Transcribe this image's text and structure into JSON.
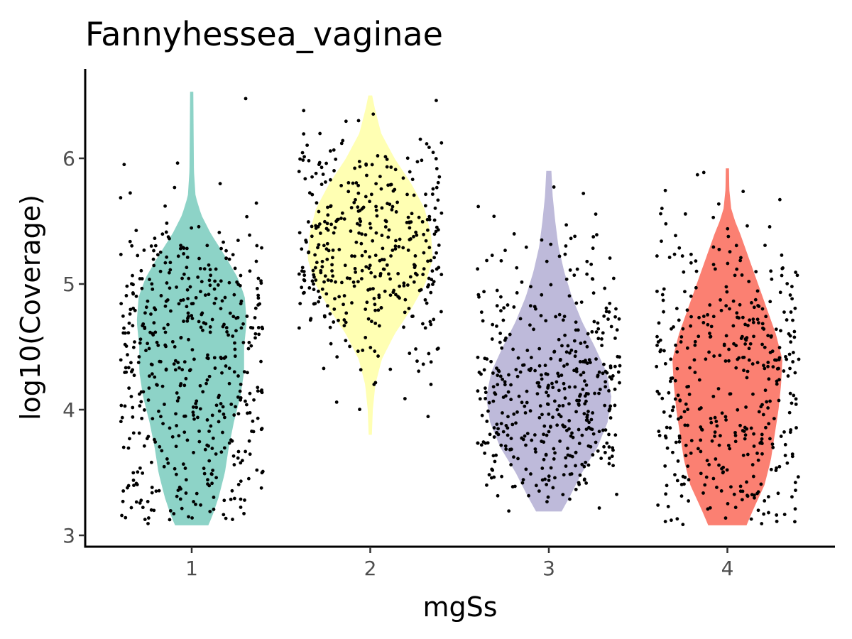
{
  "chart_data": {
    "type": "violin",
    "title": "Fannyhessea_vaginae",
    "xlabel": "mgSs",
    "ylabel": "log10(Coverage)",
    "categories": [
      "1",
      "2",
      "3",
      "4"
    ],
    "y_ticks": [
      3,
      4,
      5,
      6
    ],
    "ylim": [
      2.9,
      6.75
    ],
    "grid": false,
    "legend": "none",
    "series": [
      {
        "category": "1",
        "color": "#8dd3c7",
        "range": [
          3.08,
          6.53
        ],
        "points_per_group": 500,
        "density_profile": [
          [
            3.08,
            0.26
          ],
          [
            3.15,
            0.32
          ],
          [
            3.3,
            0.42
          ],
          [
            3.5,
            0.52
          ],
          [
            3.7,
            0.58
          ],
          [
            3.9,
            0.66
          ],
          [
            4.1,
            0.76
          ],
          [
            4.3,
            0.82
          ],
          [
            4.5,
            0.82
          ],
          [
            4.7,
            0.86
          ],
          [
            4.9,
            0.83
          ],
          [
            5.05,
            0.72
          ],
          [
            5.2,
            0.55
          ],
          [
            5.4,
            0.3
          ],
          [
            5.55,
            0.15
          ],
          [
            5.7,
            0.06
          ],
          [
            5.9,
            0.035
          ],
          [
            6.2,
            0.03
          ],
          [
            6.53,
            0.025
          ]
        ]
      },
      {
        "category": "2",
        "color": "#ffffb3",
        "range": [
          3.8,
          6.5
        ],
        "points_per_group": 400,
        "density_profile": [
          [
            3.8,
            0.025
          ],
          [
            4.0,
            0.04
          ],
          [
            4.2,
            0.08
          ],
          [
            4.4,
            0.18
          ],
          [
            4.6,
            0.38
          ],
          [
            4.8,
            0.64
          ],
          [
            5.0,
            0.86
          ],
          [
            5.2,
            0.98
          ],
          [
            5.4,
            0.95
          ],
          [
            5.6,
            0.85
          ],
          [
            5.8,
            0.64
          ],
          [
            6.0,
            0.38
          ],
          [
            6.2,
            0.17
          ],
          [
            6.4,
            0.07
          ],
          [
            6.5,
            0.03
          ]
        ]
      },
      {
        "category": "3",
        "color": "#bebada",
        "range": [
          3.19,
          5.9
        ],
        "points_per_group": 450,
        "density_profile": [
          [
            3.19,
            0.2
          ],
          [
            3.3,
            0.32
          ],
          [
            3.5,
            0.52
          ],
          [
            3.7,
            0.76
          ],
          [
            3.9,
            0.92
          ],
          [
            4.1,
            0.98
          ],
          [
            4.3,
            0.9
          ],
          [
            4.5,
            0.72
          ],
          [
            4.7,
            0.52
          ],
          [
            4.9,
            0.36
          ],
          [
            5.1,
            0.24
          ],
          [
            5.3,
            0.15
          ],
          [
            5.5,
            0.1
          ],
          [
            5.7,
            0.06
          ],
          [
            5.9,
            0.04
          ]
        ]
      },
      {
        "category": "4",
        "color": "#fb8072",
        "range": [
          3.08,
          5.92
        ],
        "points_per_group": 420,
        "density_profile": [
          [
            3.08,
            0.3
          ],
          [
            3.2,
            0.4
          ],
          [
            3.4,
            0.58
          ],
          [
            3.6,
            0.68
          ],
          [
            3.8,
            0.74
          ],
          [
            4.0,
            0.8
          ],
          [
            4.2,
            0.84
          ],
          [
            4.4,
            0.86
          ],
          [
            4.6,
            0.76
          ],
          [
            4.8,
            0.62
          ],
          [
            5.0,
            0.48
          ],
          [
            5.2,
            0.34
          ],
          [
            5.4,
            0.2
          ],
          [
            5.5,
            0.12
          ],
          [
            5.6,
            0.06
          ],
          [
            5.75,
            0.03
          ],
          [
            5.92,
            0.025
          ]
        ]
      }
    ]
  }
}
